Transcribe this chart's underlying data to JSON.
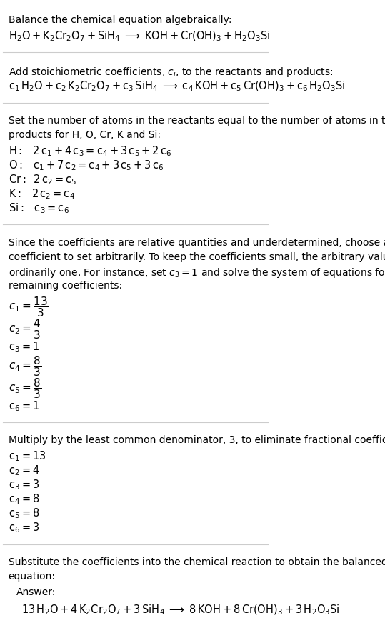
{
  "bg_color": "#ffffff",
  "text_color": "#000000",
  "section_bg": "#e8f4f8",
  "section_border": "#a0c8d8",
  "fig_width": 5.39,
  "fig_height": 9.0,
  "dpi": 100,
  "equations": {
    "equation1": "$\\mathregular{H_2O + K_2Cr_2O_7 + SiH_4 \\;\\longrightarrow\\; KOH + Cr(OH)_3 + H_2O_3Si}$",
    "equation2": "$\\mathregular{c_1\\,H_2O + c_2\\,K_2Cr_2O_7 + c_3\\,SiH_4 \\;\\longrightarrow\\; c_4\\,KOH + c_5\\,Cr(OH)_3 + c_6\\,H_2O_3Si}$",
    "H_eq": "$\\mathregular{H:\\;\\;\\; 2\\,c_1 + 4\\,c_3 = c_4 + 3\\,c_5 + 2\\,c_6}$",
    "O_eq": "$\\mathregular{O:\\;\\;\\; c_1 + 7\\,c_2 = c_4 + 3\\,c_5 + 3\\,c_6}$",
    "Cr_eq": "$\\mathregular{Cr:\\;\\; 2\\,c_2 = c_5}$",
    "K_eq": "$\\mathregular{K:\\;\\;\\; 2\\,c_2 = c_4}$",
    "Si_eq": "$\\mathregular{Si:\\;\\;\\; c_3 = c_6}$",
    "c1_frac": "$c_1 = \\dfrac{13}{3}$",
    "c2_frac": "$c_2 = \\dfrac{4}{3}$",
    "c3_1": "$\\mathregular{c_3 = 1}$",
    "c4_frac": "$c_4 = \\dfrac{8}{3}$",
    "c5_frac": "$c_5 = \\dfrac{8}{3}$",
    "c6_1": "$\\mathregular{c_6 = 1}$",
    "c1_13": "$\\mathregular{c_1 = 13}$",
    "c2_4": "$\\mathregular{c_2 = 4}$",
    "c3_3": "$\\mathregular{c_3 = 3}$",
    "c4_8": "$\\mathregular{c_4 = 8}$",
    "c5_8": "$\\mathregular{c_5 = 8}$",
    "c6_3": "$\\mathregular{c_6 = 3}$",
    "answer_eq": "$\\mathregular{13\\,H_2O + 4\\,K_2Cr_2O_7 + 3\\,SiH_4 \\;\\longrightarrow\\; 8\\,KOH + 8\\,Cr(OH)_3 + 3\\,H_2O_3Si}$"
  }
}
